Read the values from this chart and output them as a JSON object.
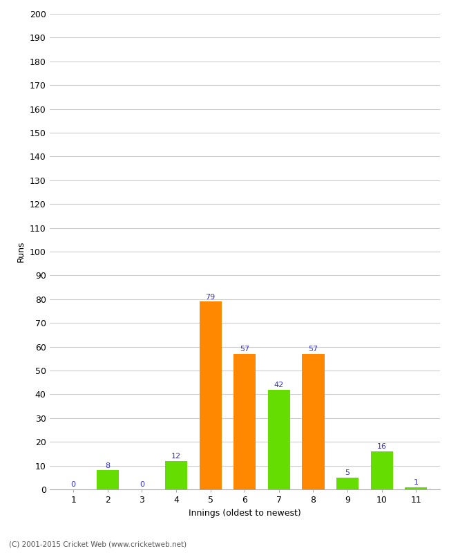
{
  "innings": [
    1,
    2,
    3,
    4,
    5,
    6,
    7,
    8,
    9,
    10,
    11
  ],
  "values": [
    0,
    8,
    0,
    12,
    79,
    57,
    42,
    57,
    5,
    16,
    1
  ],
  "colors": [
    "#66dd00",
    "#66dd00",
    "#66dd00",
    "#66dd00",
    "#ff8800",
    "#ff8800",
    "#66dd00",
    "#ff8800",
    "#66dd00",
    "#66dd00",
    "#66dd00"
  ],
  "xlabel": "Innings (oldest to newest)",
  "ylabel": "Runs",
  "ylim": [
    0,
    200
  ],
  "yticks": [
    0,
    10,
    20,
    30,
    40,
    50,
    60,
    70,
    80,
    90,
    100,
    110,
    120,
    130,
    140,
    150,
    160,
    170,
    180,
    190,
    200
  ],
  "label_color": "#3333cc",
  "label_fontsize": 8,
  "footer": "(C) 2001-2015 Cricket Web (www.cricketweb.net)",
  "bg_color": "#ffffff",
  "grid_color": "#cccccc",
  "bar_width": 0.65
}
